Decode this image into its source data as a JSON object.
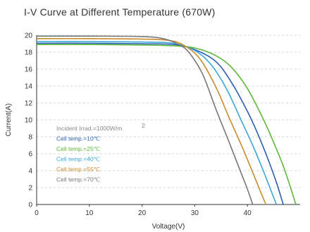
{
  "chart_data": {
    "type": "line",
    "title": "I-V Curve at Different Temperature (670W)",
    "xlabel": "Voltage(V)",
    "ylabel": "Current(A)",
    "xlim": [
      0,
      50
    ],
    "ylim": [
      0,
      20
    ],
    "xticks": [
      "0",
      "10",
      "20",
      "30",
      "40"
    ],
    "yticks": [
      "0",
      "2",
      "4",
      "6",
      "8",
      "10",
      "12",
      "14",
      "16",
      "18",
      "20"
    ],
    "grid": true,
    "legend_position": "center-left",
    "legend_title": "Incident Irrad.=1000W/m",
    "legend_title_sup": "2",
    "series": [
      {
        "name": "Cell temp.=10℃",
        "color": "#2a5fb0",
        "x": [
          0,
          10,
          20,
          26,
          30,
          34,
          37,
          40,
          42,
          44,
          45.5,
          46.8
        ],
        "y": [
          19.05,
          19.05,
          19.0,
          18.9,
          18.3,
          16.9,
          14.4,
          11.0,
          8.3,
          5.2,
          2.6,
          0
        ]
      },
      {
        "name": "Cell temp.=25℃",
        "color": "#5cb83a",
        "x": [
          0,
          10,
          20,
          26,
          30,
          34,
          37,
          40,
          43,
          45,
          47,
          49.2
        ],
        "y": [
          18.9,
          18.9,
          18.85,
          18.75,
          18.5,
          17.6,
          16.2,
          13.7,
          10.1,
          7.3,
          4.2,
          0
        ]
      },
      {
        "name": "Cell temp.=40℃",
        "color": "#3aa6d8",
        "x": [
          0,
          10,
          20,
          26,
          30,
          33,
          36,
          39,
          41,
          43,
          44.5,
          45.5
        ],
        "y": [
          19.25,
          19.25,
          19.2,
          19.05,
          18.2,
          16.6,
          13.7,
          9.7,
          7.0,
          4.0,
          1.6,
          0
        ]
      },
      {
        "name": "Cell temp.=55℃",
        "color": "#c98a2e",
        "x": [
          0,
          10,
          20,
          25,
          28,
          31,
          34,
          36.5,
          39,
          41,
          42.5,
          43.5
        ],
        "y": [
          19.6,
          19.6,
          19.55,
          19.4,
          18.8,
          17.2,
          13.9,
          10.3,
          6.8,
          3.8,
          1.5,
          0
        ]
      },
      {
        "name": "Cell temp.=70℃",
        "color": "#777777",
        "x": [
          0,
          10,
          20,
          24,
          27,
          29,
          31.5,
          34,
          36.5,
          38.5,
          40,
          41
        ],
        "y": [
          19.9,
          19.9,
          19.85,
          19.6,
          18.9,
          17.9,
          15.4,
          11.3,
          7.4,
          4.2,
          1.8,
          0
        ]
      }
    ]
  }
}
